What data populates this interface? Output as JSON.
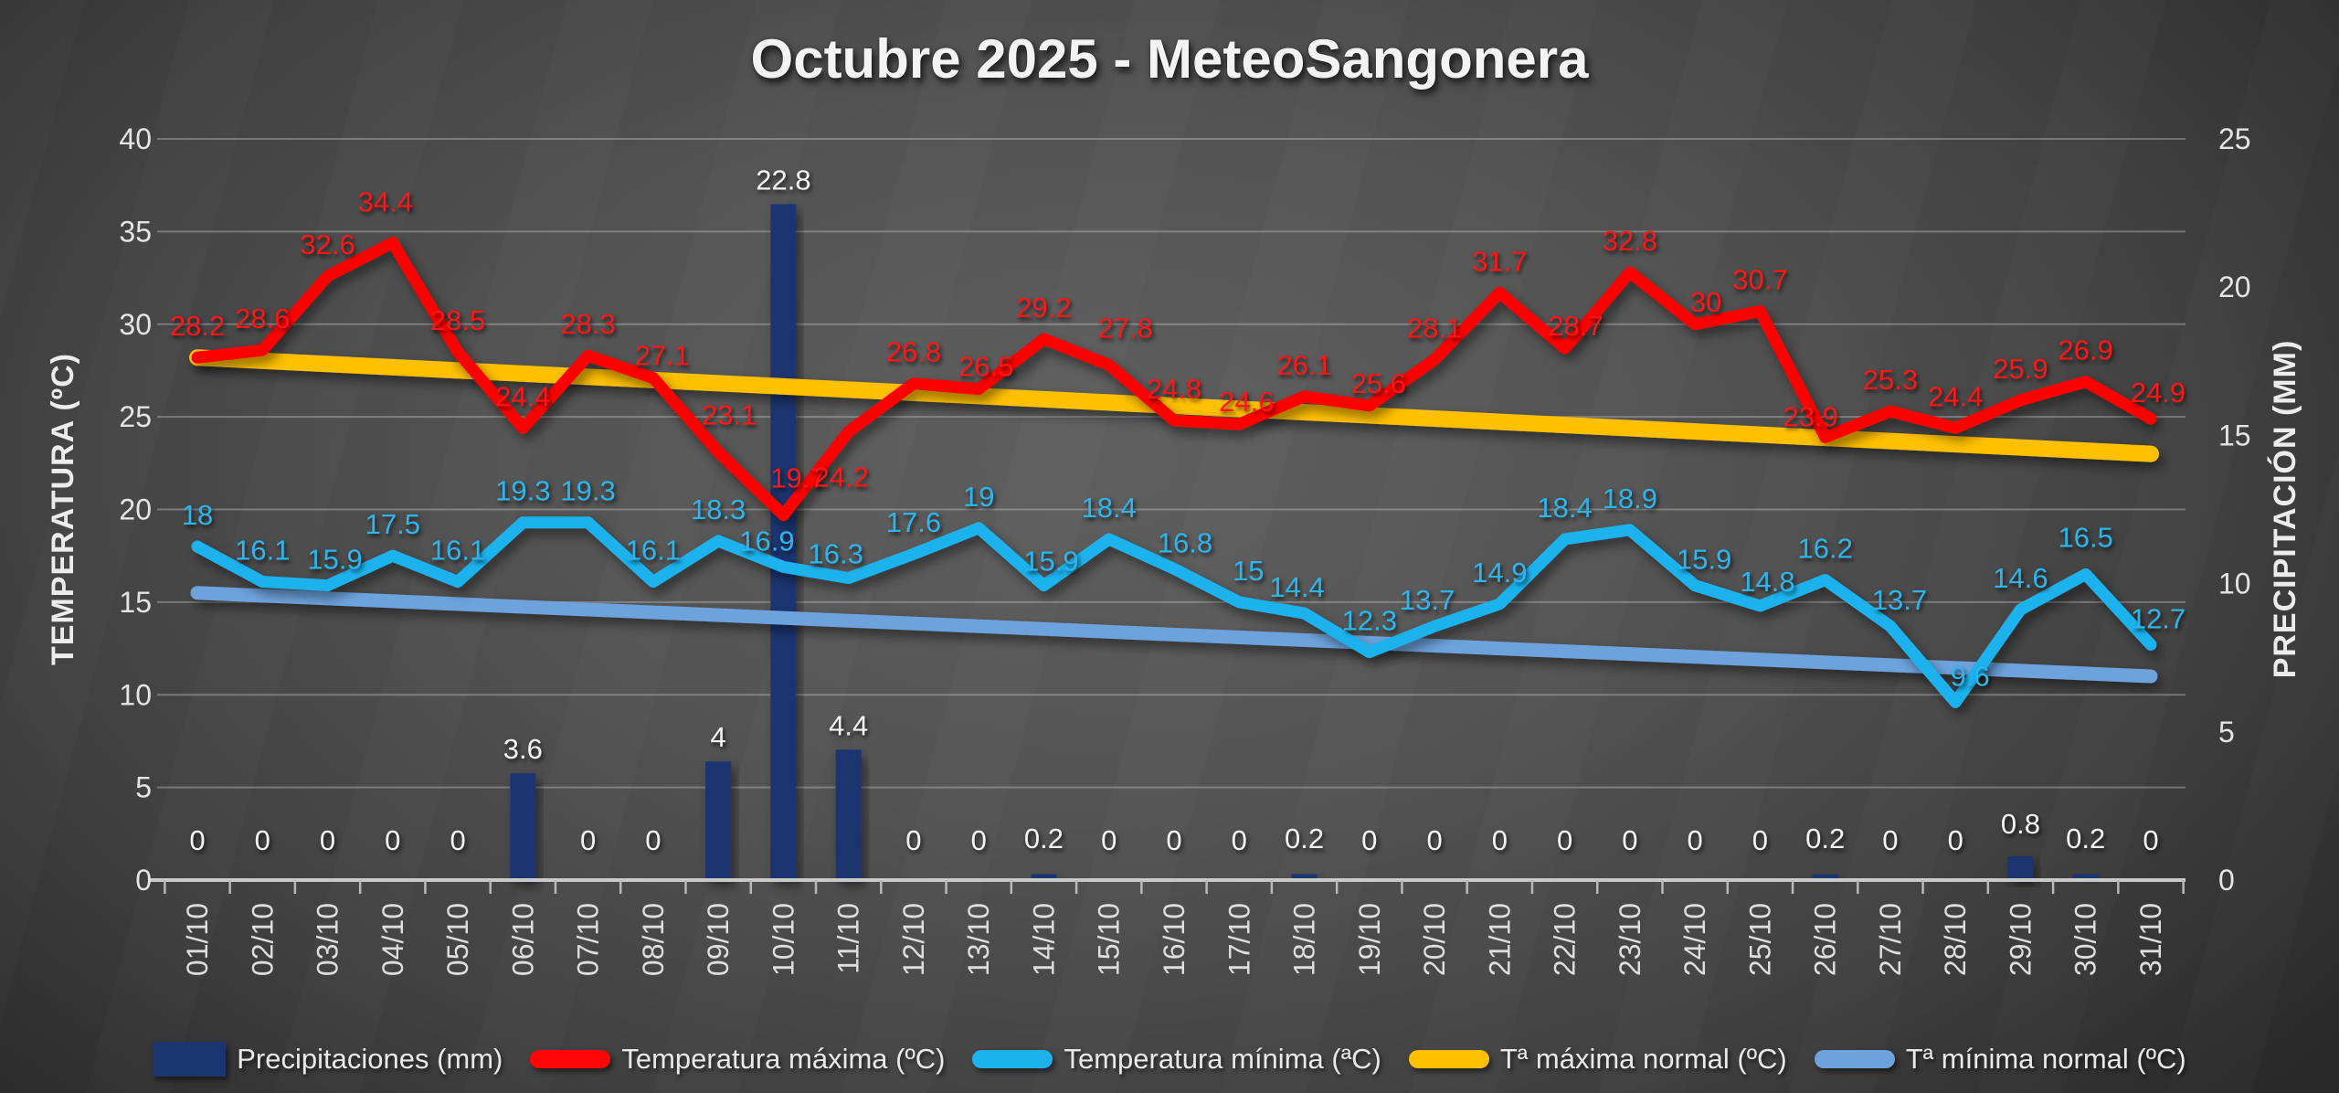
{
  "chart_data": {
    "type": "combo-bar-line",
    "title": "Octubre 2025 - MeteoSangonera",
    "grid": true,
    "legend_position": "bottom",
    "categories": [
      "01/10",
      "02/10",
      "03/10",
      "04/10",
      "05/10",
      "06/10",
      "07/10",
      "08/10",
      "09/10",
      "10/10",
      "11/10",
      "12/10",
      "13/10",
      "14/10",
      "15/10",
      "16/10",
      "17/10",
      "18/10",
      "19/10",
      "20/10",
      "21/10",
      "22/10",
      "23/10",
      "24/10",
      "25/10",
      "26/10",
      "27/10",
      "28/10",
      "29/10",
      "30/10",
      "31/10"
    ],
    "left_axis": {
      "title": "TEMPERATURA (ºC)",
      "min": 0,
      "max": 40,
      "tick_step": 5,
      "ticks": [
        40,
        35,
        30,
        25,
        20,
        15,
        10,
        5,
        0
      ]
    },
    "right_axis": {
      "title": "PRECIPITACIÓN (MM)",
      "min": 0,
      "max": 25,
      "tick_step": 5,
      "ticks": [
        25,
        20,
        15,
        10,
        5,
        0
      ]
    },
    "series": [
      {
        "name": "Precipitaciones (mm)",
        "type": "bar",
        "axis": "right",
        "color": "#1a366f",
        "labels": true,
        "values": [
          0,
          0,
          0,
          0,
          0,
          3.6,
          0,
          0,
          4,
          22.8,
          4.4,
          0,
          0,
          0.2,
          0,
          0,
          0,
          0.2,
          0,
          0,
          0,
          0,
          0,
          0,
          0,
          0.2,
          0,
          0,
          0.8,
          0.2,
          0
        ]
      },
      {
        "name": "Temperatura máxima (ºC)",
        "type": "line",
        "axis": "left",
        "color": "#fe0606",
        "labels": true,
        "values": [
          28.2,
          28.6,
          32.6,
          34.4,
          28.5,
          24.4,
          28.3,
          27.1,
          23.1,
          19.7,
          24.2,
          26.8,
          26.5,
          29.2,
          27.8,
          24.8,
          24.6,
          26.1,
          25.6,
          28.1,
          31.7,
          28.7,
          32.8,
          30,
          30.7,
          23.9,
          25.3,
          24.4,
          25.9,
          26.9,
          24.9
        ]
      },
      {
        "name": "Temperatura mínima (ªC)",
        "type": "line",
        "axis": "left",
        "color": "#1cb2ee",
        "labels": true,
        "values": [
          18,
          16.1,
          15.9,
          17.5,
          16.1,
          19.3,
          19.3,
          16.1,
          18.3,
          16.9,
          16.3,
          17.6,
          19,
          15.9,
          18.4,
          16.8,
          15,
          14.4,
          12.3,
          13.7,
          14.9,
          18.4,
          18.9,
          15.9,
          14.8,
          16.2,
          13.7,
          9.6,
          14.6,
          16.5,
          12.7
        ]
      },
      {
        "name": "Tª máxima normal (ºC)",
        "type": "trend",
        "axis": "left",
        "color": "#ffc000",
        "labels": false,
        "start": 28.2,
        "end": 23.0
      },
      {
        "name": "Tª mínima normal (ºC)",
        "type": "trend",
        "axis": "left",
        "color": "#6da2dc",
        "labels": false,
        "start": 15.5,
        "end": 11.0
      }
    ]
  }
}
